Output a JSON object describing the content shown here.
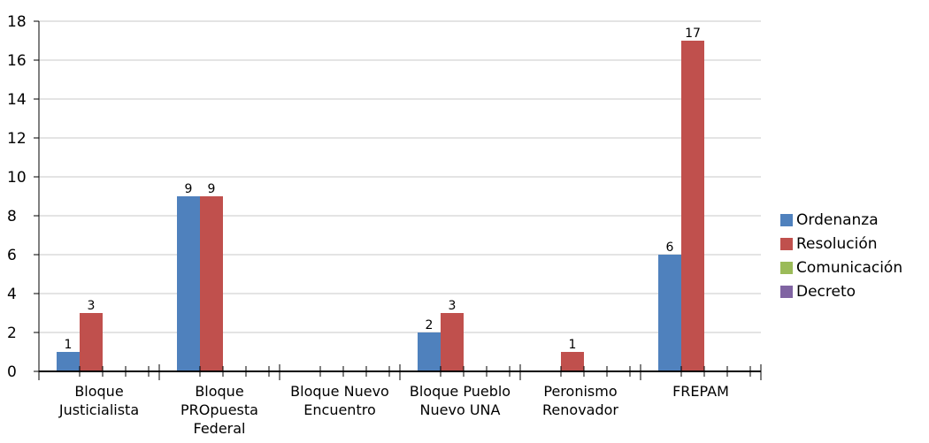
{
  "chart_data": {
    "type": "bar",
    "categories": [
      [
        "Bloque",
        "Justicialista"
      ],
      [
        "Bloque",
        "PROpuesta",
        "Federal"
      ],
      [
        "Bloque Nuevo",
        "Encuentro"
      ],
      [
        "Bloque Pueblo",
        "Nuevo UNA"
      ],
      [
        "Peronismo",
        "Renovador"
      ],
      [
        "FREPAM"
      ]
    ],
    "series": [
      {
        "name": "Ordenanza",
        "color": "#4f81bd",
        "values": [
          1,
          9,
          null,
          2,
          null,
          6
        ]
      },
      {
        "name": "Resolución",
        "color": "#c0504d",
        "values": [
          3,
          9,
          null,
          3,
          1,
          17
        ]
      },
      {
        "name": "Comunicación",
        "color": "#9bbb59",
        "values": [
          null,
          null,
          null,
          null,
          null,
          null
        ]
      },
      {
        "name": "Decreto",
        "color": "#8064a2",
        "values": [
          null,
          null,
          null,
          null,
          null,
          null
        ]
      }
    ],
    "ylim": [
      0,
      18
    ],
    "yticks": [
      0,
      2,
      4,
      6,
      8,
      10,
      12,
      14,
      16,
      18
    ],
    "grid": true,
    "legend_position": "right"
  }
}
